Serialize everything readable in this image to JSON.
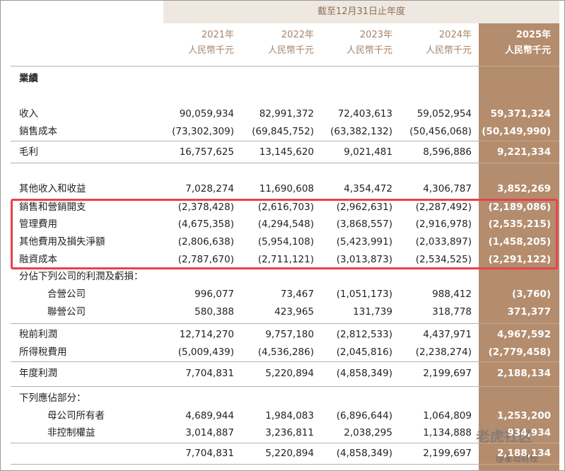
{
  "header": {
    "period": "截至12月31日止年度",
    "columns": [
      {
        "year": "2021年",
        "unit": "人民幣千元"
      },
      {
        "year": "2022年",
        "unit": "人民幣千元"
      },
      {
        "year": "2023年",
        "unit": "人民幣千元"
      },
      {
        "year": "2024年",
        "unit": "人民幣千元"
      },
      {
        "year": "2025年",
        "unit": "人民幣千元"
      }
    ]
  },
  "table": {
    "rows": [
      {
        "label": "業績"
      },
      {
        "label": "收入",
        "values": [
          "90,059,934",
          "82,991,372",
          "72,403,613",
          "59,052,954",
          "59,371,324"
        ]
      },
      {
        "label": "銷售成本",
        "values": [
          "(73,302,309)",
          "(69,845,752)",
          "(63,382,132)",
          "(50,456,068)",
          "(50,149,990)"
        ]
      },
      {
        "label": "毛利",
        "values": [
          "16,757,625",
          "13,145,620",
          "9,021,481",
          "8,596,886",
          "9,221,334"
        ]
      },
      {
        "label": "其他收入和收益",
        "values": [
          "7,028,274",
          "11,690,608",
          "4,354,472",
          "4,306,787",
          "3,852,269"
        ]
      },
      {
        "label": "銷售和營銷開支",
        "values": [
          "(2,378,428)",
          "(2,616,703)",
          "(2,962,631)",
          "(2,287,492)",
          "(2,189,086)"
        ]
      },
      {
        "label": "管理費用",
        "values": [
          "(4,675,358)",
          "(4,294,548)",
          "(3,868,557)",
          "(2,916,978)",
          "(2,535,215)"
        ]
      },
      {
        "label": "其他費用及損失淨額",
        "values": [
          "(2,806,638)",
          "(5,954,108)",
          "(5,423,991)",
          "(2,033,897)",
          "(1,458,205)"
        ]
      },
      {
        "label": "融資成本",
        "values": [
          "(2,787,670)",
          "(2,711,121)",
          "(3,013,873)",
          "(2,534,525)",
          "(2,291,122)"
        ]
      },
      {
        "label": "分佔下列公司的利潤及虧損："
      },
      {
        "label": "合營公司",
        "values": [
          "996,077",
          "73,467",
          "(1,051,173)",
          "988,412",
          "(3,760)"
        ]
      },
      {
        "label": "聯營公司",
        "values": [
          "580,388",
          "423,965",
          "131,739",
          "318,778",
          "371,377"
        ]
      },
      {
        "label": "稅前利潤",
        "values": [
          "12,714,270",
          "9,757,180",
          "(2,812,533)",
          "4,437,971",
          "4,967,592"
        ]
      },
      {
        "label": "所得稅費用",
        "values": [
          "(5,009,439)",
          "(4,536,286)",
          "(2,045,816)",
          "(2,238,274)",
          "(2,779,458)"
        ]
      },
      {
        "label": "年度利潤",
        "values": [
          "7,704,831",
          "5,220,894",
          "(4,858,349)",
          "2,199,697",
          "2,188,134"
        ]
      },
      {
        "label": "下列應佔部分："
      },
      {
        "label": "母公司所有者",
        "values": [
          "4,689,944",
          "1,984,083",
          "(6,896,644)",
          "1,064,809",
          "1,253,200"
        ]
      },
      {
        "label": "非控制權益",
        "values": [
          "3,014,887",
          "3,236,811",
          "2,038,295",
          "1,134,888",
          "934,934"
        ]
      },
      {
        "values": [
          "7,704,831",
          "5,220,894",
          "(4,858,349)",
          "2,199,697",
          "2,188,134"
        ]
      }
    ]
  },
  "watermark": {
    "brand": "老虎社区",
    "source": "@星岛财经"
  }
}
